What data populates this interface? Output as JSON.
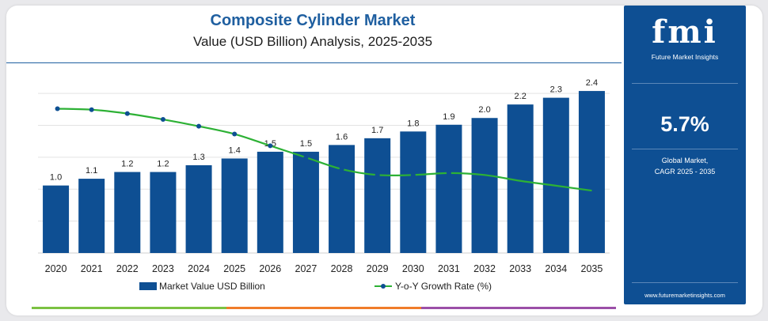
{
  "header": {
    "title": "Composite Cylinder Market",
    "subtitle": "Value (USD Billion) Analysis, 2025-2035"
  },
  "sidebar": {
    "logo": "fmi",
    "logo_subtitle": "Future Market Insights",
    "cagr_value": "5.7%",
    "cagr_label_1": "Global Market,",
    "cagr_label_2": "CAGR 2025 - 2035",
    "website": "www.futuremarketinsights.com"
  },
  "legend": {
    "bar_label": "Market Value USD Billion",
    "line_label": "Y-o-Y Growth Rate (%)"
  },
  "colors": {
    "bar": "#0e4f93",
    "line": "#2db135",
    "marker": "#0e4f93",
    "brand": "#1f5fa0",
    "bottom_segments": [
      "#7bc142",
      "#f07c2a",
      "#9b4fa8"
    ]
  },
  "chart_data": {
    "type": "bar",
    "categories": [
      "2020",
      "2021",
      "2022",
      "2023",
      "2024",
      "2025",
      "2026",
      "2027",
      "2028",
      "2029",
      "2030",
      "2031",
      "2032",
      "2033",
      "2034",
      "2035"
    ],
    "series": [
      {
        "name": "Market Value USD Billion",
        "type": "bar",
        "values": [
          1.0,
          1.1,
          1.2,
          1.2,
          1.3,
          1.4,
          1.5,
          1.5,
          1.6,
          1.7,
          1.8,
          1.9,
          2.0,
          2.2,
          2.3,
          2.4
        ],
        "labels": [
          "1.0",
          "1.1",
          "1.2",
          "1.2",
          "1.3",
          "1.4",
          "1.5",
          "1.5",
          "1.6",
          "1.7",
          "1.8",
          "1.9",
          "2.0",
          "2.2",
          "2.3",
          "2.4"
        ]
      },
      {
        "name": "Y-o-Y Growth Rate (%)",
        "type": "line",
        "values": [
          7.4,
          7.35,
          7.15,
          6.85,
          6.5,
          6.1,
          5.5,
          4.9,
          4.3,
          4.0,
          4.0,
          4.1,
          4.0,
          3.7,
          3.45,
          3.2
        ],
        "markers_shown": 12
      }
    ],
    "ylim": [
      0,
      2.6
    ],
    "y2lim": [
      0,
      9
    ],
    "grid": true,
    "legend_position": "bottom"
  }
}
